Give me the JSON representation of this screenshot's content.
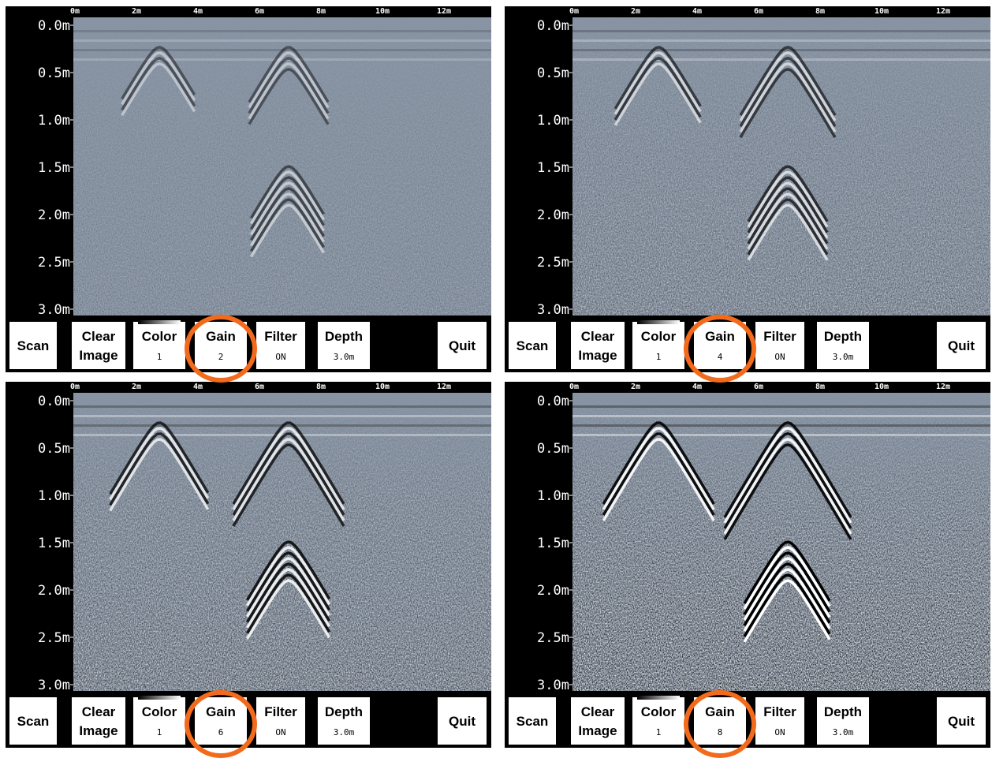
{
  "panels": [
    {
      "x_labels": [
        "0m",
        "2m",
        "4m",
        "6m",
        "8m",
        "10m",
        "12m"
      ],
      "y_labels": [
        "0.0m",
        "0.5m",
        "1.0m",
        "1.5m",
        "2.0m",
        "2.5m",
        "3.0m"
      ],
      "buttons": [
        {
          "label": [
            "Scan"
          ]
        },
        {
          "label": [
            "Clear",
            "Image"
          ]
        },
        {
          "label": [
            "Color"
          ],
          "value": "1"
        },
        {
          "label": [
            "Gain"
          ],
          "value": "2"
        },
        {
          "label": [
            "Filter"
          ],
          "value": "ON"
        },
        {
          "label": [
            "Depth"
          ],
          "value": "3.0m"
        },
        {
          "label": [
            "Quit"
          ]
        }
      ]
    },
    {
      "x_labels": [
        "0m",
        "2m",
        "4m",
        "6m",
        "8m",
        "10m",
        "12m"
      ],
      "y_labels": [
        "0.0m",
        "0.5m",
        "1.0m",
        "1.5m",
        "2.0m",
        "2.5m",
        "3.0m"
      ],
      "buttons": [
        {
          "label": [
            "Scan"
          ]
        },
        {
          "label": [
            "Clear",
            "Image"
          ]
        },
        {
          "label": [
            "Color"
          ],
          "value": "1"
        },
        {
          "label": [
            "Gain"
          ],
          "value": "4"
        },
        {
          "label": [
            "Filter"
          ],
          "value": "ON"
        },
        {
          "label": [
            "Depth"
          ],
          "value": "3.0m"
        },
        {
          "label": [
            "Quit"
          ]
        }
      ]
    },
    {
      "x_labels": [
        "0m",
        "2m",
        "4m",
        "6m",
        "8m",
        "10m",
        "12m"
      ],
      "y_labels": [
        "0.0m",
        "0.5m",
        "1.0m",
        "1.5m",
        "2.0m",
        "2.5m",
        "3.0m"
      ],
      "buttons": [
        {
          "label": [
            "Scan"
          ]
        },
        {
          "label": [
            "Clear",
            "Image"
          ]
        },
        {
          "label": [
            "Color"
          ],
          "value": "1"
        },
        {
          "label": [
            "Gain"
          ],
          "value": "6"
        },
        {
          "label": [
            "Filter"
          ],
          "value": "ON"
        },
        {
          "label": [
            "Depth"
          ],
          "value": "3.0m"
        },
        {
          "label": [
            "Quit"
          ]
        }
      ]
    },
    {
      "x_labels": [
        "0m",
        "2m",
        "4m",
        "6m",
        "8m",
        "10m",
        "12m"
      ],
      "y_labels": [
        "0.0m",
        "0.5m",
        "1.0m",
        "1.5m",
        "2.0m",
        "2.5m",
        "3.0m"
      ],
      "buttons": [
        {
          "label": [
            "Scan"
          ]
        },
        {
          "label": [
            "Clear",
            "Image"
          ]
        },
        {
          "label": [
            "Color"
          ],
          "value": "1"
        },
        {
          "label": [
            "Gain"
          ],
          "value": "8"
        },
        {
          "label": [
            "Filter"
          ],
          "value": "ON"
        },
        {
          "label": [
            "Depth"
          ],
          "value": "3.0m"
        },
        {
          "label": [
            "Quit"
          ]
        }
      ]
    }
  ]
}
